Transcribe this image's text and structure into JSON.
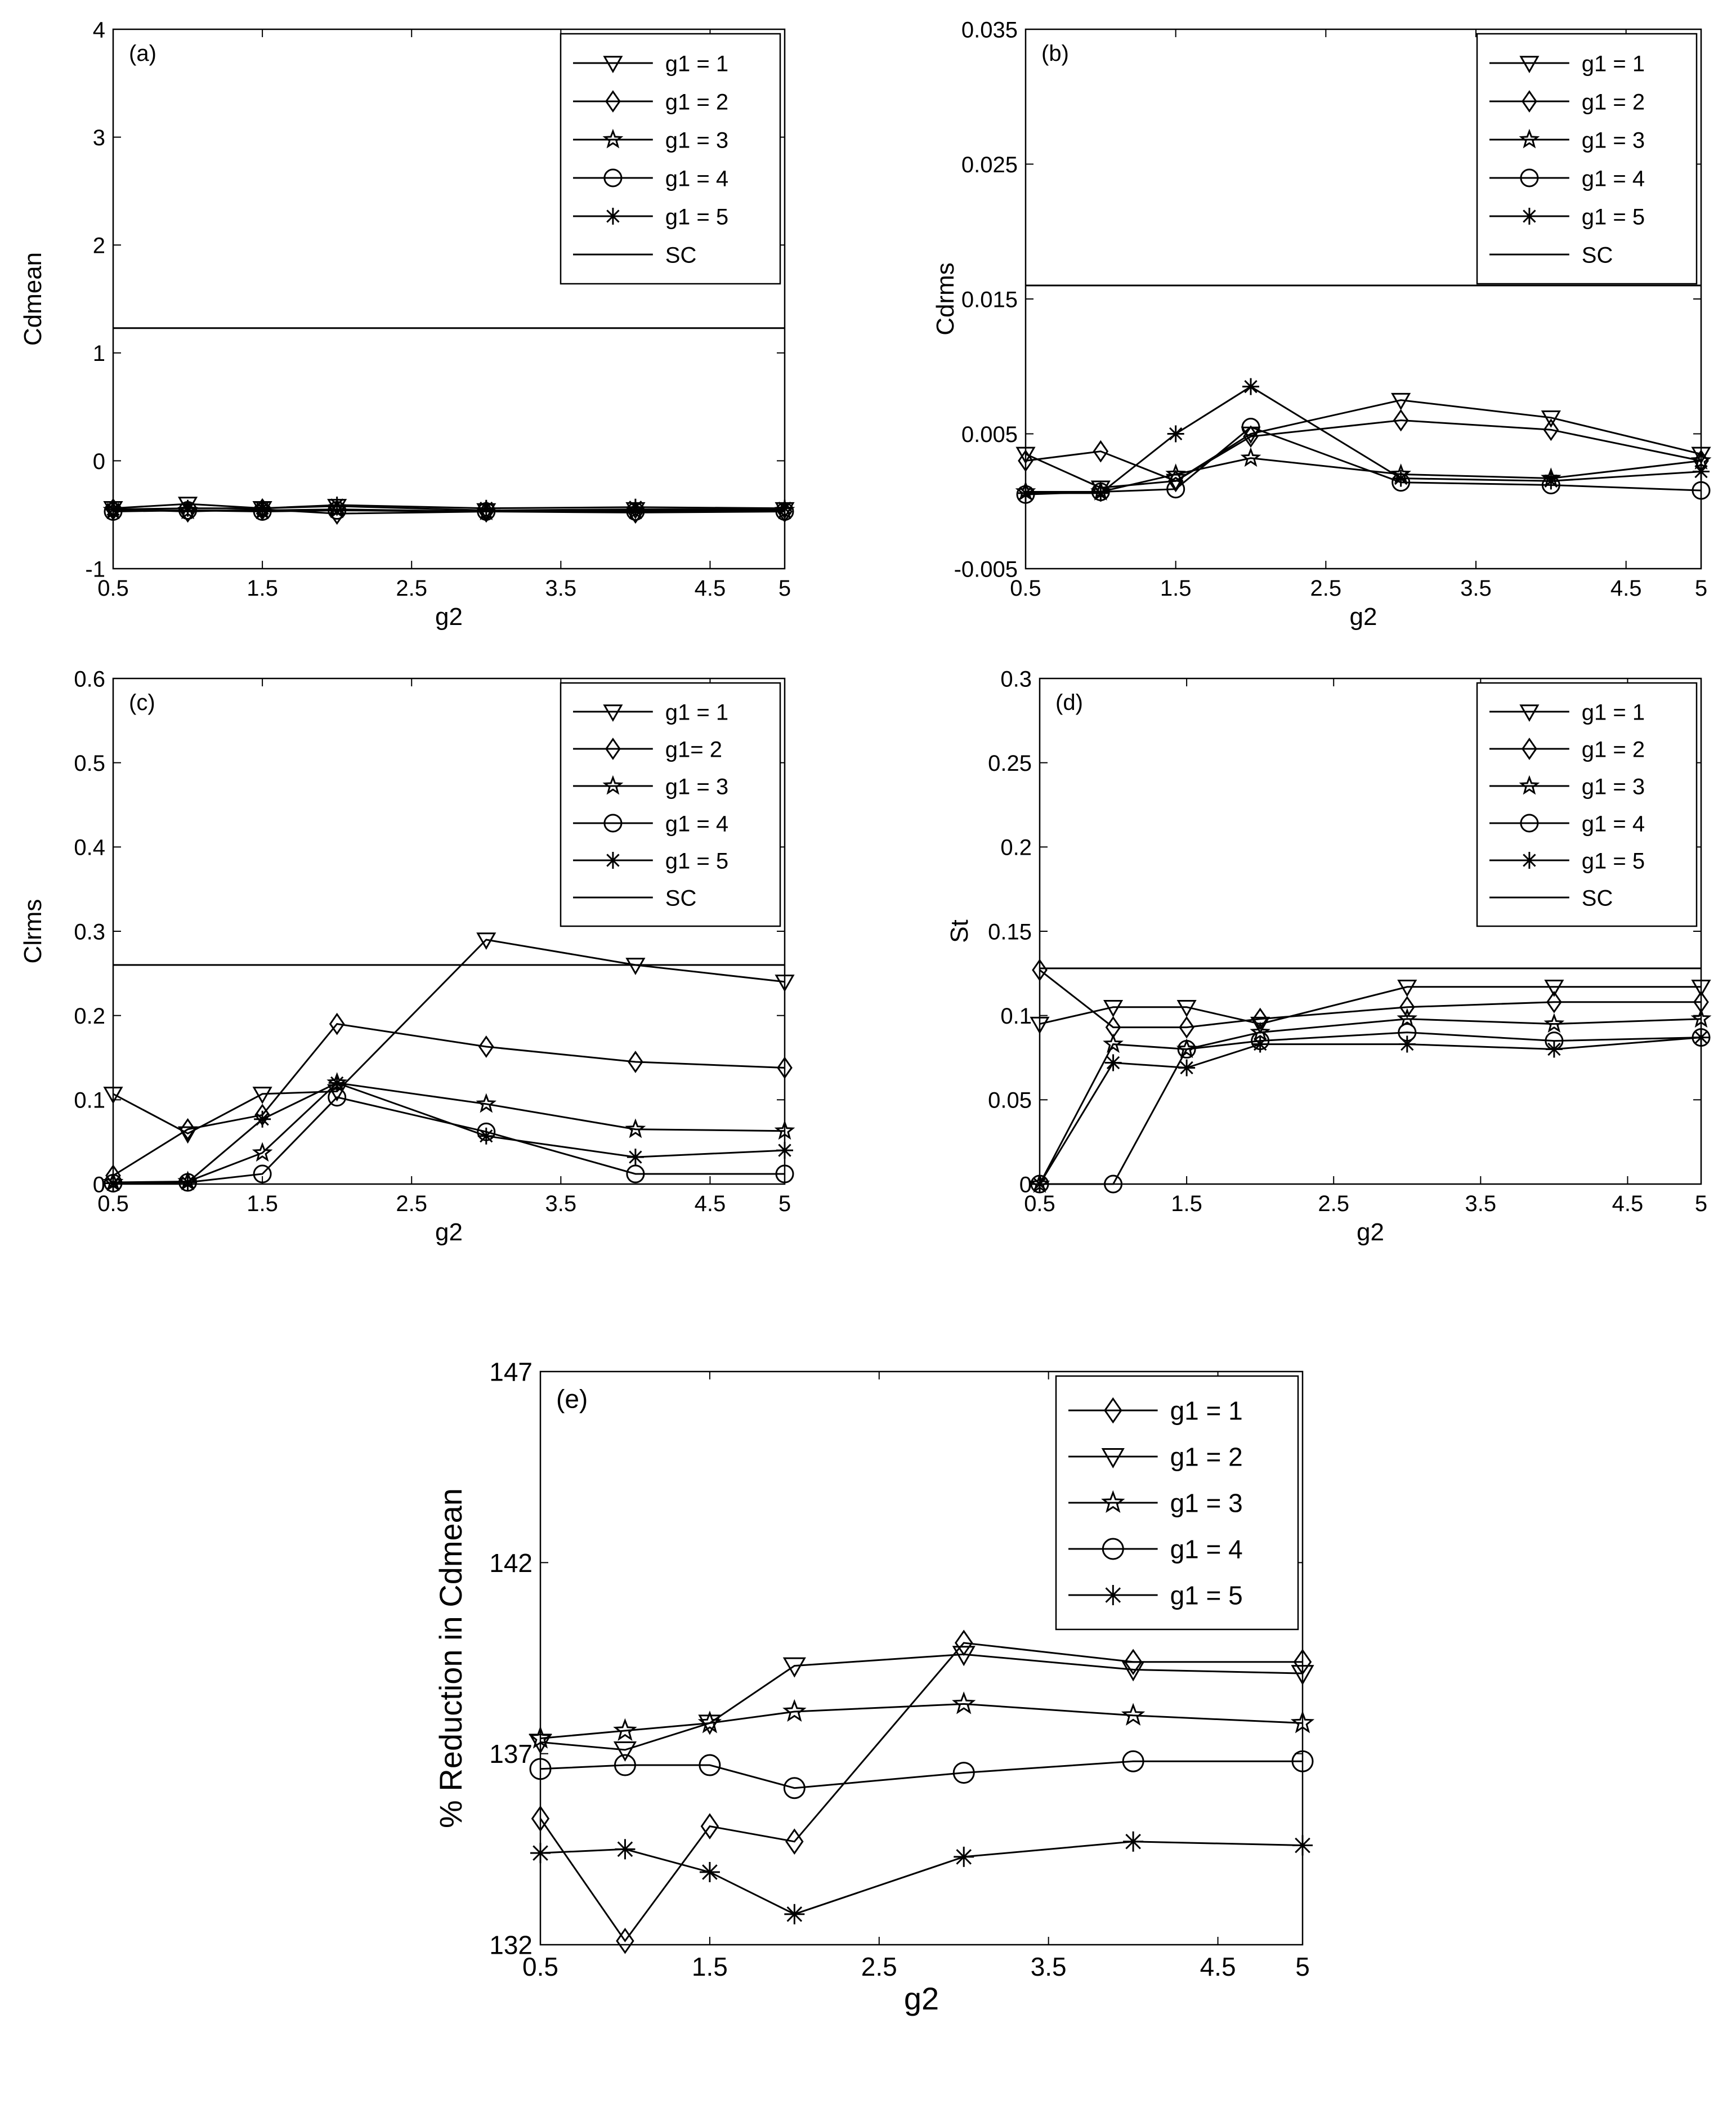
{
  "chart_data": [
    {
      "id": "a",
      "type": "line",
      "panel_label": "(a)",
      "xlabel": "g2",
      "ylabel": "Cdmean",
      "xlim": [
        0.5,
        5
      ],
      "ylim": [
        -1,
        4
      ],
      "xticks": [
        "0.5",
        "1.5",
        "2.5",
        "3.5",
        "4.5",
        "5"
      ],
      "yticks": [
        "-1",
        "0",
        "1",
        "2",
        "3",
        "4"
      ],
      "x": [
        0.5,
        1,
        1.5,
        2,
        3,
        4,
        5
      ],
      "series": [
        {
          "name": "g1 = 1",
          "marker": "triangle-down",
          "values": [
            -0.44,
            -0.4,
            -0.44,
            -0.42,
            -0.46,
            -0.45,
            -0.45
          ]
        },
        {
          "name": "g1 = 2",
          "marker": "diamond",
          "values": [
            -0.45,
            -0.47,
            -0.45,
            -0.49,
            -0.47,
            -0.48,
            -0.47
          ]
        },
        {
          "name": "g1 = 3",
          "marker": "star",
          "values": [
            -0.46,
            -0.46,
            -0.46,
            -0.45,
            -0.47,
            -0.46,
            -0.46
          ]
        },
        {
          "name": "g1 = 4",
          "marker": "circle",
          "values": [
            -0.47,
            -0.46,
            -0.47,
            -0.46,
            -0.47,
            -0.47,
            -0.47
          ]
        },
        {
          "name": "g1 = 5",
          "marker": "asterisk",
          "values": [
            -0.45,
            -0.44,
            -0.44,
            -0.41,
            -0.44,
            -0.43,
            -0.44
          ]
        }
      ],
      "reference_line": {
        "name": "SC",
        "value": 1.23
      },
      "legend": [
        "g1 = 1",
        "g1 = 2",
        "g1 = 3",
        "g1 = 4",
        "g1 = 5",
        "SC"
      ]
    },
    {
      "id": "b",
      "type": "line",
      "panel_label": "(b)",
      "xlabel": "g2",
      "ylabel": "Cdrms",
      "xlim": [
        0.5,
        5
      ],
      "ylim": [
        -0.005,
        0.035
      ],
      "xticks": [
        "0.5",
        "1.5",
        "2.5",
        "3.5",
        "4.5",
        "5"
      ],
      "yticks": [
        "-0.005",
        "0.005",
        "0.015",
        "0.025",
        "0.035"
      ],
      "x": [
        0.5,
        1,
        1.5,
        2,
        3,
        4,
        5
      ],
      "series": [
        {
          "name": "g1 = 1",
          "marker": "triangle-down",
          "values": [
            0.0035,
            0.001,
            0.0015,
            0.005,
            0.0075,
            0.0062,
            0.0035
          ]
        },
        {
          "name": "g1 = 2",
          "marker": "diamond",
          "values": [
            0.003,
            0.0037,
            0.0015,
            0.0048,
            0.006,
            0.0053,
            0.003
          ]
        },
        {
          "name": "g1 = 3",
          "marker": "star",
          "values": [
            0.0007,
            0.0007,
            0.002,
            0.0032,
            0.002,
            0.0017,
            0.003
          ]
        },
        {
          "name": "g1 = 4",
          "marker": "circle",
          "values": [
            0.0005,
            0.0007,
            0.0009,
            0.0055,
            0.0014,
            0.0012,
            0.0008
          ]
        },
        {
          "name": "g1 = 5",
          "marker": "asterisk",
          "values": [
            0.0006,
            0.0006,
            0.005,
            0.0085,
            0.0017,
            0.0015,
            0.0022
          ]
        }
      ],
      "reference_line": {
        "name": "SC",
        "value": 0.016
      },
      "legend": [
        "g1 = 1",
        "g1 = 2",
        "g1 = 3",
        "g1 = 4",
        "g1 = 5",
        "SC"
      ]
    },
    {
      "id": "c",
      "type": "line",
      "panel_label": "(c)",
      "xlabel": "g2",
      "ylabel": "Clrms",
      "xlim": [
        0.5,
        5
      ],
      "ylim": [
        0,
        0.6
      ],
      "xticks": [
        "0.5",
        "1.5",
        "2.5",
        "3.5",
        "4.5",
        "5"
      ],
      "yticks": [
        "0",
        "0.1",
        "0.2",
        "0.3",
        "0.4",
        "0.5",
        "0.6"
      ],
      "x": [
        0.5,
        1,
        1.5,
        2,
        3,
        4,
        5
      ],
      "series": [
        {
          "name": "g1 = 1",
          "marker": "triangle-down",
          "values": [
            0.107,
            0.06,
            0.107,
            0.11,
            0.29,
            0.26,
            0.24
          ]
        },
        {
          "name": "g1= 2",
          "marker": "diamond",
          "values": [
            0.01,
            0.065,
            0.082,
            0.19,
            0.163,
            0.145,
            0.138
          ]
        },
        {
          "name": "g1 = 3",
          "marker": "star",
          "values": [
            0.002,
            0.003,
            0.037,
            0.12,
            0.095,
            0.065,
            0.063
          ]
        },
        {
          "name": "g1 = 4",
          "marker": "circle",
          "values": [
            0.001,
            0.002,
            0.012,
            0.103,
            0.062,
            0.012,
            0.012
          ]
        },
        {
          "name": "g1 = 5",
          "marker": "asterisk",
          "values": [
            0.001,
            0.002,
            0.077,
            0.12,
            0.057,
            0.032,
            0.04
          ]
        }
      ],
      "reference_line": {
        "name": "SC",
        "value": 0.26
      },
      "legend": [
        "g1 = 1",
        "g1= 2",
        "g1 = 3",
        "g1 = 4",
        "g1 = 5",
        "SC"
      ]
    },
    {
      "id": "d",
      "type": "line",
      "panel_label": "(d)",
      "xlabel": "g2",
      "ylabel": "St",
      "xlim": [
        0.5,
        5
      ],
      "ylim": [
        0,
        0.3
      ],
      "xticks": [
        "0.5",
        "1.5",
        "2.5",
        "3.5",
        "4.5",
        "5"
      ],
      "yticks": [
        "0",
        "0.05",
        "0.1",
        "0.15",
        "0.2",
        "0.25",
        "0.3"
      ],
      "x": [
        0.5,
        1,
        1.5,
        2,
        3,
        4,
        5
      ],
      "series": [
        {
          "name": "g1 = 1",
          "marker": "triangle-down",
          "values": [
            0.095,
            0.105,
            0.105,
            0.095,
            0.117,
            0.117,
            0.117
          ]
        },
        {
          "name": "g1 = 2",
          "marker": "diamond",
          "values": [
            0.127,
            0.093,
            0.093,
            0.098,
            0.105,
            0.108,
            0.108
          ]
        },
        {
          "name": "g1 = 3",
          "marker": "star",
          "values": [
            0,
            0.083,
            0.08,
            0.09,
            0.098,
            0.095,
            0.098
          ]
        },
        {
          "name": "g1 = 4",
          "marker": "circle",
          "values": [
            0,
            0,
            0.08,
            0.085,
            0.09,
            0.085,
            0.087
          ]
        },
        {
          "name": "g1 = 5",
          "marker": "asterisk",
          "values": [
            0,
            0.072,
            0.069,
            0.083,
            0.083,
            0.08,
            0.087
          ]
        }
      ],
      "reference_line": {
        "name": "SC",
        "value": 0.128
      },
      "legend": [
        "g1 = 1",
        "g1 = 2",
        "g1 = 3",
        "g1 = 4",
        "g1 = 5",
        "SC"
      ]
    },
    {
      "id": "e",
      "type": "line",
      "panel_label": "(e)",
      "xlabel": "g2",
      "ylabel": "% Reduction in Cdmean",
      "xlim": [
        0.5,
        5
      ],
      "ylim": [
        132,
        147
      ],
      "xticks": [
        "0.5",
        "1.5",
        "2.5",
        "3.5",
        "4.5",
        "5"
      ],
      "yticks": [
        "132",
        "137",
        "142",
        "147"
      ],
      "x": [
        0.5,
        1,
        1.5,
        2,
        3,
        4,
        5
      ],
      "series": [
        {
          "name": "g1 = 1",
          "marker": "diamond",
          "values": [
            135.3,
            132.1,
            135.1,
            134.7,
            139.9,
            139.4,
            139.4
          ]
        },
        {
          "name": "g1 = 2",
          "marker": "triangle-down",
          "values": [
            137.3,
            137.1,
            137.8,
            139.3,
            139.6,
            139.2,
            139.1
          ]
        },
        {
          "name": "g1 = 3",
          "marker": "star",
          "values": [
            137.4,
            137.6,
            137.8,
            138.1,
            138.3,
            138.0,
            137.8
          ]
        },
        {
          "name": "g1 = 4",
          "marker": "circle",
          "values": [
            136.6,
            136.7,
            136.7,
            136.1,
            136.5,
            136.8,
            136.8
          ]
        },
        {
          "name": "g1 = 5",
          "marker": "asterisk",
          "values": [
            134.4,
            134.5,
            133.9,
            132.8,
            134.3,
            134.7,
            134.6
          ]
        }
      ],
      "legend": [
        "g1 = 1",
        "g1 = 2",
        "g1 = 3",
        "g1 = 4",
        "g1 = 5"
      ]
    }
  ]
}
